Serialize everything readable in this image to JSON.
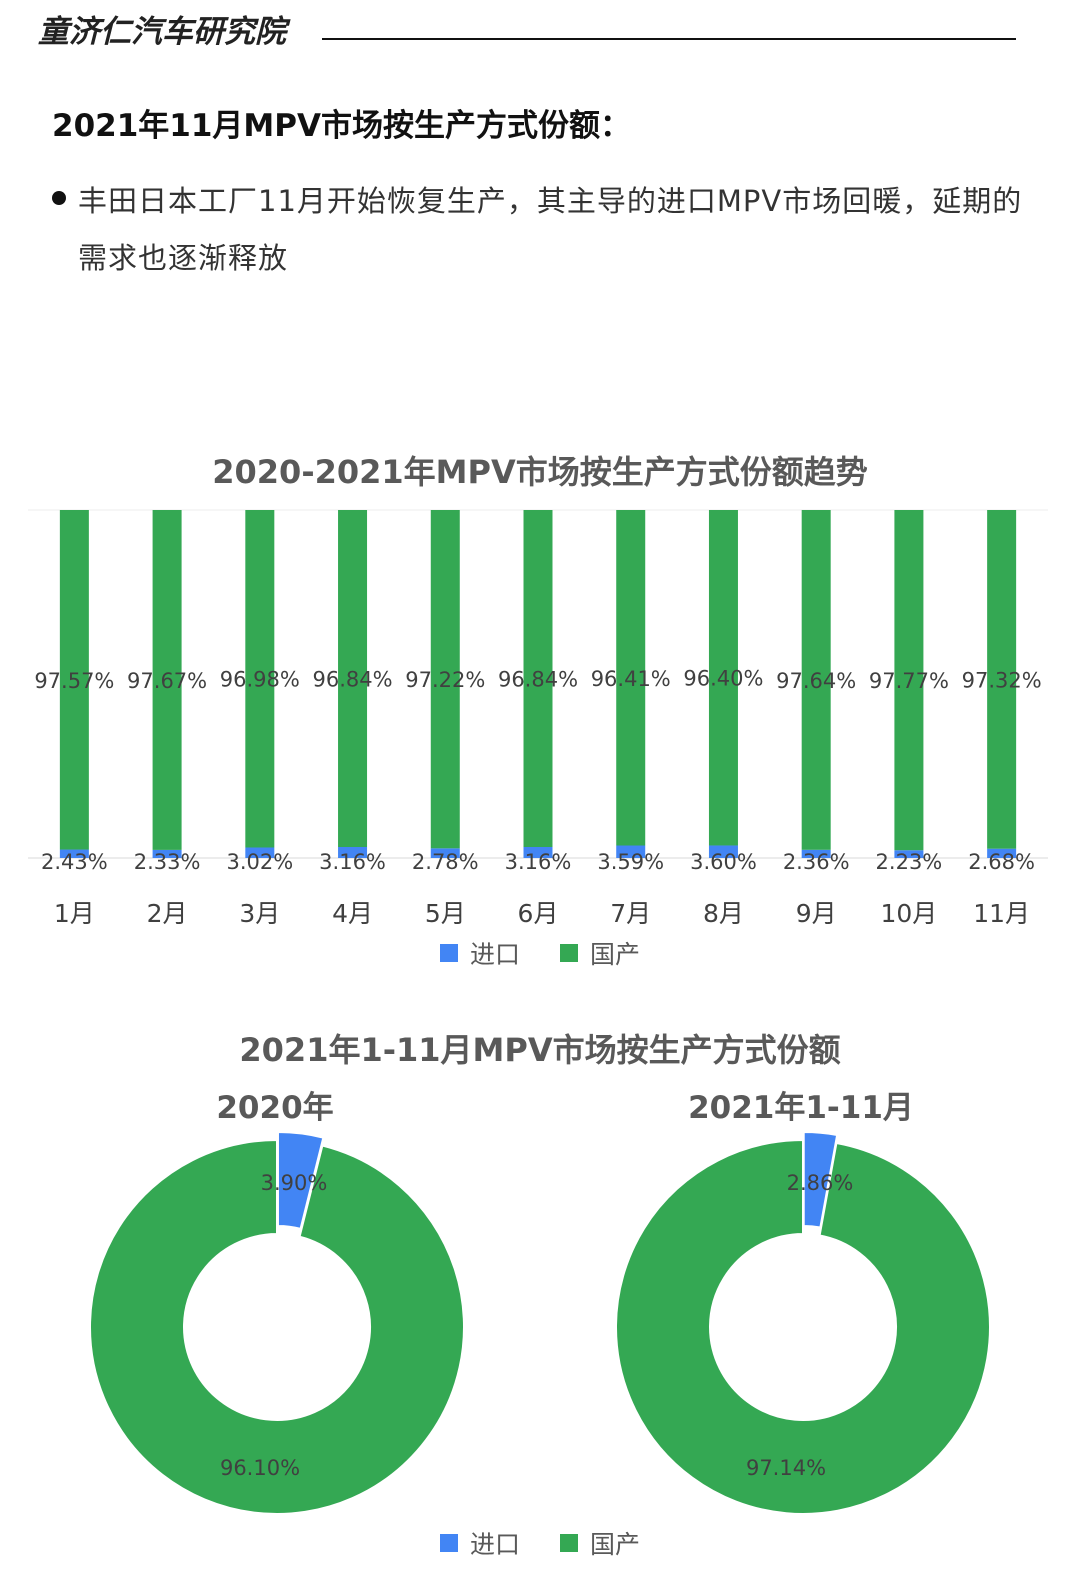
{
  "header": {
    "brand": "童济仁汽车研究院",
    "heading": "2021年11月MPV市场按生产方式份额：",
    "bullet": "丰田日本工厂11月开始恢复生产，其主导的进口MPV市场回暖，延期的需求也逐渐释放"
  },
  "colors": {
    "import": "#4285f4",
    "domestic": "#34a853"
  },
  "chart_data": [
    {
      "type": "bar",
      "stacked": true,
      "percent_stacked": true,
      "title": "2020-2021年MPV市场按生产方式份额趋势",
      "categories": [
        "1月",
        "2月",
        "3月",
        "4月",
        "5月",
        "6月",
        "7月",
        "8月",
        "9月",
        "10月",
        "11月"
      ],
      "series": [
        {
          "name": "进口",
          "color": "#4285f4",
          "values": [
            2.43,
            2.33,
            3.02,
            3.16,
            2.78,
            3.16,
            3.59,
            3.6,
            2.36,
            2.23,
            2.68
          ],
          "labels": [
            "2.43%",
            "2.33%",
            "3.02%",
            "3.16%",
            "2.78%",
            "3.16%",
            "3.59%",
            "3.60%",
            "2.36%",
            "2.23%",
            "2.68%"
          ]
        },
        {
          "name": "国产",
          "color": "#34a853",
          "values": [
            97.57,
            97.67,
            96.98,
            96.84,
            97.22,
            96.84,
            96.41,
            96.4,
            97.64,
            97.77,
            97.32
          ],
          "labels": [
            "97.57%",
            "97.67%",
            "96.98%",
            "96.84%",
            "97.22%",
            "96.84%",
            "96.41%",
            "96.40%",
            "97.64%",
            "97.77%",
            "97.32%"
          ]
        }
      ],
      "ylim": [
        0,
        100
      ],
      "legend": [
        "进口",
        "国产"
      ],
      "legend_position": "bottom"
    },
    {
      "type": "pie",
      "donut": true,
      "title": "2021年1-11月MPV市场按生产方式份额",
      "charts": [
        {
          "subtitle": "2020年",
          "slices": [
            {
              "name": "进口",
              "value": 3.9,
              "label": "3.90%",
              "color": "#4285f4"
            },
            {
              "name": "国产",
              "value": 96.1,
              "label": "96.10%",
              "color": "#34a853"
            }
          ]
        },
        {
          "subtitle": "2021年1-11月",
          "slices": [
            {
              "name": "进口",
              "value": 2.86,
              "label": "2.86%",
              "color": "#4285f4"
            },
            {
              "name": "国产",
              "value": 97.14,
              "label": "97.14%",
              "color": "#34a853"
            }
          ]
        }
      ],
      "legend": [
        "进口",
        "国产"
      ],
      "legend_position": "bottom"
    }
  ]
}
